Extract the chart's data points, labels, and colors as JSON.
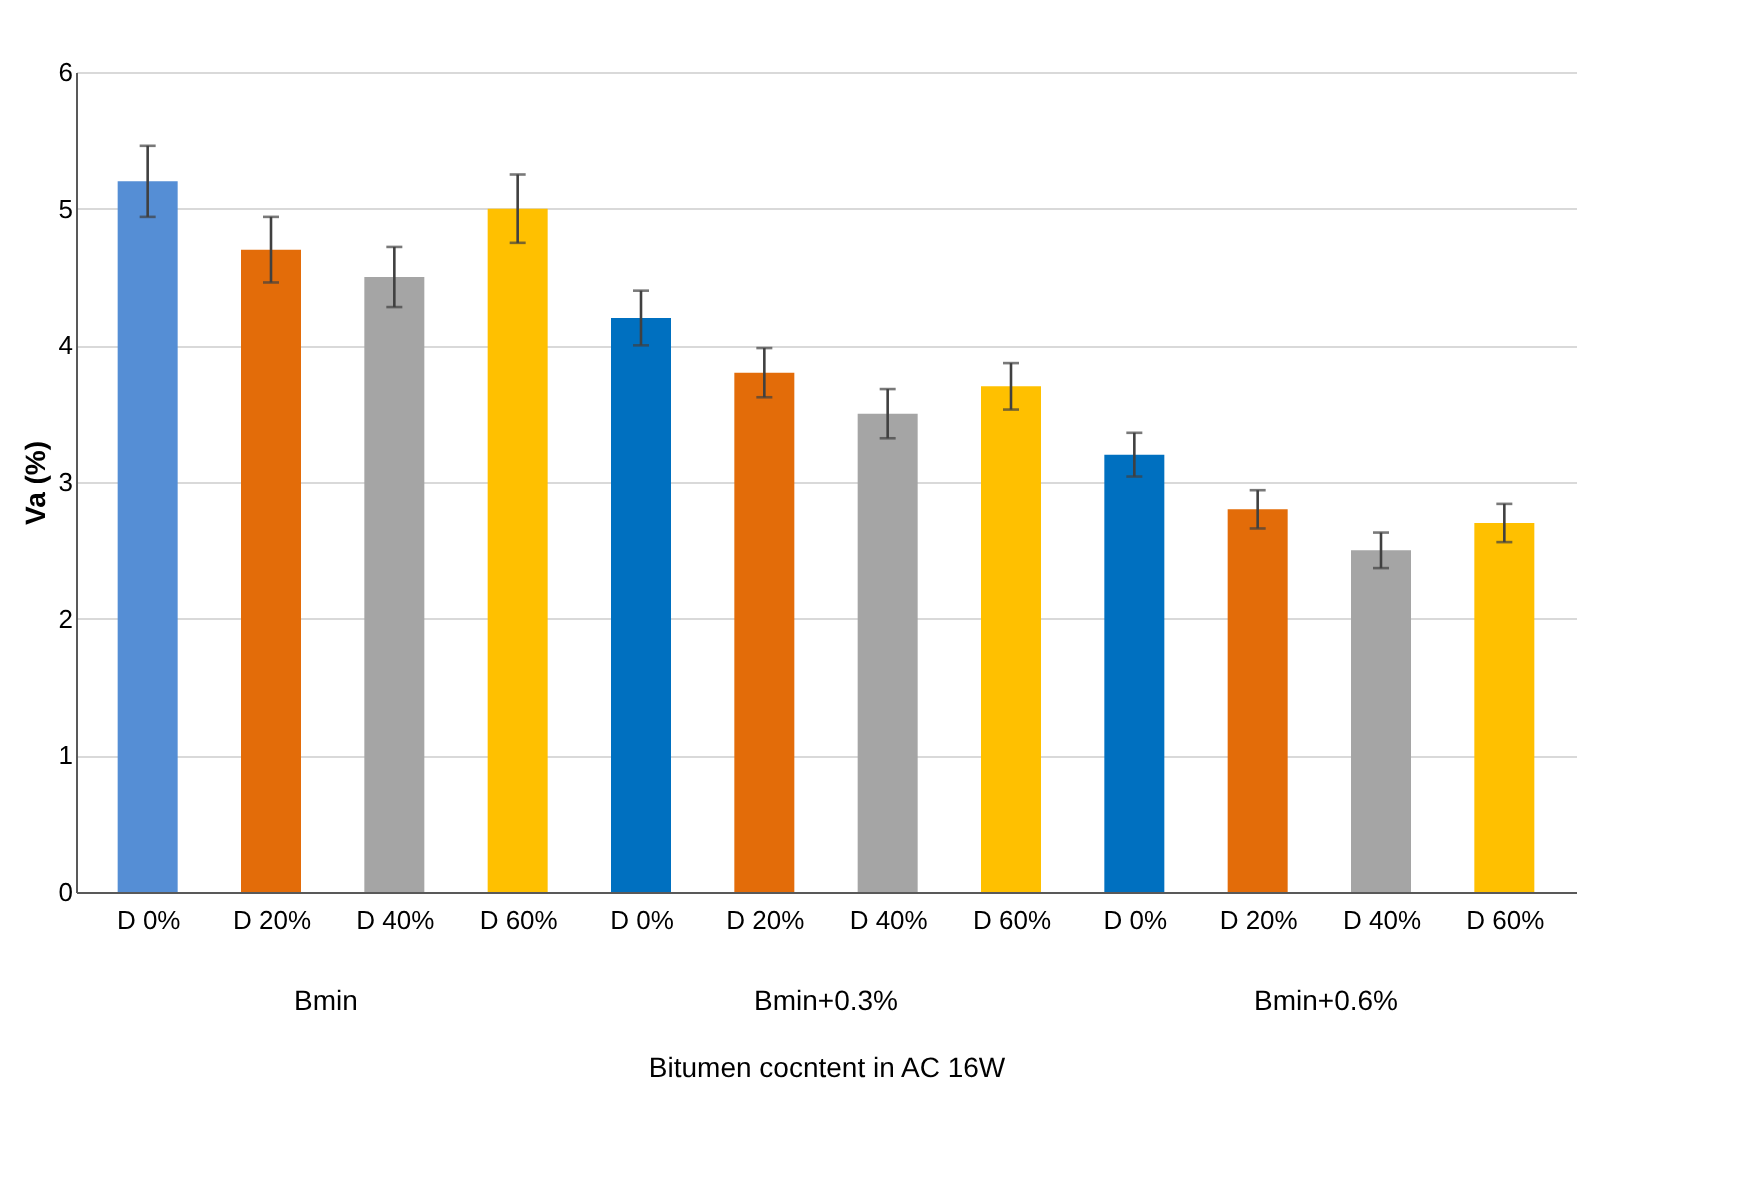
{
  "chart_data": {
    "type": "bar",
    "xlabel": "Bitumen cocntent in AC 16W",
    "ylabel": "Va  (%)",
    "categories": [
      "D 0%",
      "D 20%",
      "D 40%",
      "D 60%",
      "D 0%",
      "D 20%",
      "D 40%",
      "D 60%",
      "D 0%",
      "D 20%",
      "D 40%",
      "D 60%"
    ],
    "values": [
      5.2,
      4.7,
      4.5,
      5.0,
      4.2,
      3.8,
      3.5,
      3.7,
      3.2,
      2.8,
      2.5,
      2.7
    ],
    "errors": [
      0.26,
      0.24,
      0.22,
      0.25,
      0.2,
      0.18,
      0.18,
      0.17,
      0.16,
      0.14,
      0.13,
      0.14
    ],
    "colors": [
      "#558ed5",
      "#e36c09",
      "#a5a5a5",
      "#ffc000",
      "#0070c0",
      "#e36c09",
      "#a5a5a5",
      "#ffc000",
      "#0070c0",
      "#e36c09",
      "#a5a5a5",
      "#ffc000"
    ],
    "annotations": [
      "Bmin",
      "Bmin+0.3%",
      "Bmin+0.6%"
    ],
    "ylim": [
      0,
      6
    ],
    "yticks": [
      0,
      1,
      2,
      3,
      4,
      5,
      6
    ],
    "grid": "y"
  }
}
